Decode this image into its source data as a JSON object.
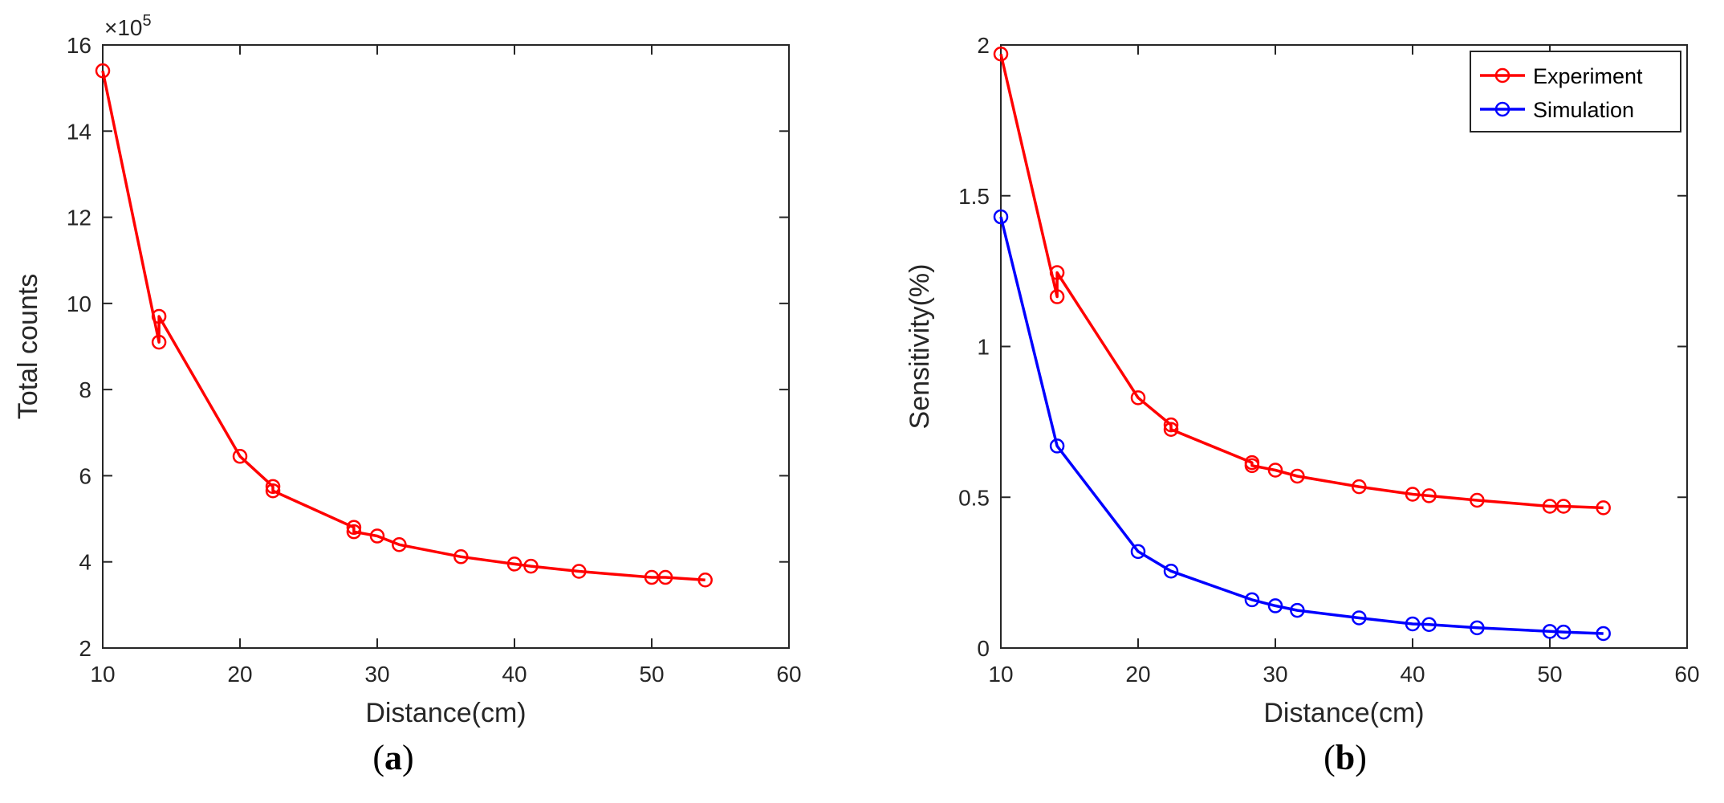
{
  "chart_data": [
    {
      "panel": "(a)",
      "type": "line",
      "caption_open": "(",
      "caption_letter": "a",
      "caption_close": ")",
      "title": "",
      "xlabel": "Distance(cm)",
      "ylabel": "Total counts",
      "exponent_label": "×10",
      "exponent_power": "5",
      "xlim": [
        10,
        60
      ],
      "ylim": [
        2,
        16
      ],
      "xticks": [
        10,
        20,
        30,
        40,
        50,
        60
      ],
      "xtick_labels": [
        "10",
        "20",
        "30",
        "40",
        "50",
        "60"
      ],
      "yticks": [
        2,
        4,
        6,
        8,
        10,
        12,
        14,
        16
      ],
      "ytick_labels": [
        "2",
        "4",
        "6",
        "8",
        "10",
        "12",
        "14",
        "16"
      ],
      "grid": false,
      "series": [
        {
          "name": "Total counts",
          "color": "#ff0000",
          "marker": "circle",
          "x": [
            10.0,
            14.1,
            14.1,
            20.0,
            22.4,
            22.4,
            28.3,
            28.3,
            30.0,
            31.6,
            36.1,
            40.0,
            41.2,
            44.7,
            50.0,
            51.0,
            53.9
          ],
          "y": [
            15.4,
            9.1,
            9.7,
            6.45,
            5.75,
            5.65,
            4.8,
            4.7,
            4.6,
            4.4,
            4.12,
            3.95,
            3.9,
            3.78,
            3.64,
            3.64,
            3.58
          ]
        }
      ]
    },
    {
      "panel": "(b)",
      "type": "line",
      "caption_open": "(",
      "caption_letter": "b",
      "caption_close": ")",
      "title": "",
      "xlabel": "Distance(cm)",
      "ylabel": "Sensitivity(%)",
      "xlim": [
        10,
        60
      ],
      "ylim": [
        0,
        2
      ],
      "xticks": [
        10,
        20,
        30,
        40,
        50,
        60
      ],
      "xtick_labels": [
        "10",
        "20",
        "30",
        "40",
        "50",
        "60"
      ],
      "yticks": [
        0,
        0.5,
        1,
        1.5,
        2
      ],
      "ytick_labels": [
        "0",
        "0.5",
        "1",
        "1.5",
        "2"
      ],
      "grid": false,
      "legend_position": "top-right",
      "series": [
        {
          "name": "Experiment",
          "color": "#ff0000",
          "marker": "circle",
          "x": [
            10.0,
            14.1,
            14.1,
            20.0,
            22.4,
            22.4,
            28.3,
            28.3,
            30.0,
            31.6,
            36.1,
            40.0,
            41.2,
            44.7,
            50.0,
            51.0,
            53.9
          ],
          "y": [
            1.97,
            1.165,
            1.245,
            0.83,
            0.74,
            0.725,
            0.615,
            0.605,
            0.59,
            0.57,
            0.535,
            0.51,
            0.505,
            0.49,
            0.47,
            0.47,
            0.465
          ]
        },
        {
          "name": "Simulation",
          "color": "#0000ff",
          "marker": "circle",
          "x": [
            10.0,
            14.1,
            20.0,
            22.4,
            28.3,
            30.0,
            31.6,
            36.1,
            40.0,
            41.2,
            44.7,
            50.0,
            51.0,
            53.9
          ],
          "y": [
            1.43,
            0.67,
            0.32,
            0.255,
            0.16,
            0.14,
            0.125,
            0.1,
            0.08,
            0.078,
            0.067,
            0.055,
            0.053,
            0.048
          ]
        }
      ]
    }
  ]
}
